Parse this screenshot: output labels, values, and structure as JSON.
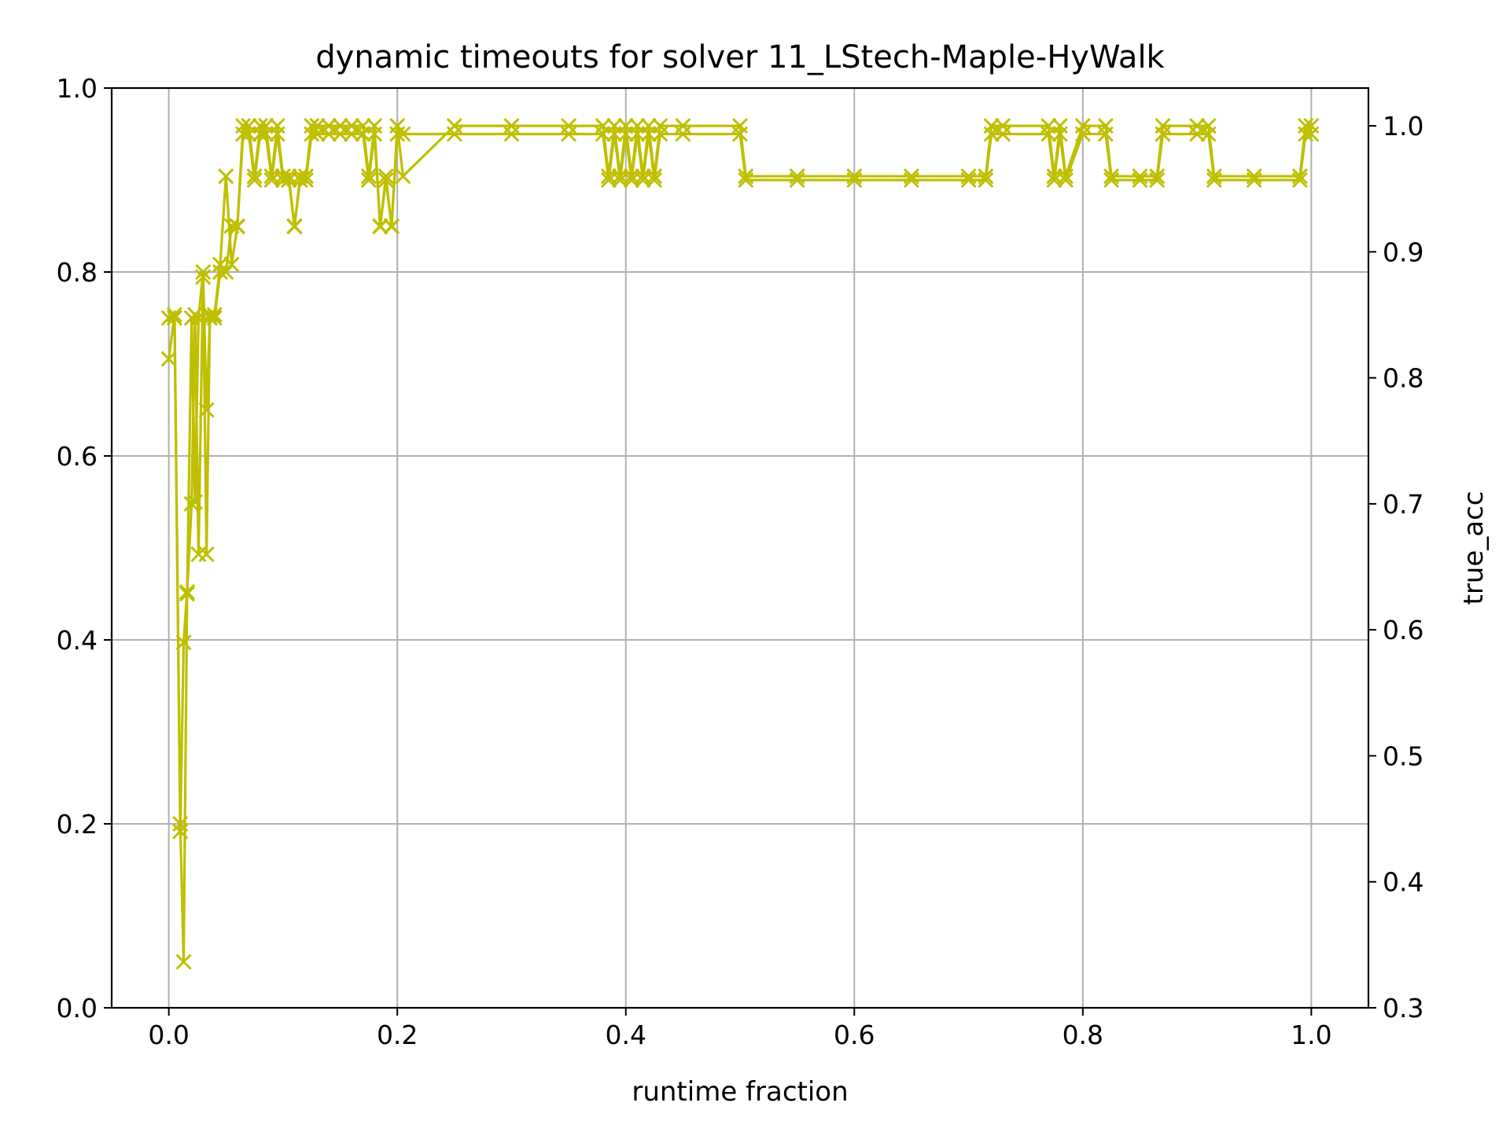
{
  "chart_data": {
    "type": "line",
    "title": "dynamic timeouts for solver 11_LStech-Maple-HyWalk",
    "xlabel": "runtime fraction",
    "ylabel": "",
    "y2label": "true_acc",
    "xlim": [
      -0.05,
      1.05
    ],
    "ylim": [
      0.0,
      1.0
    ],
    "y2lim": [
      0.3,
      1.03
    ],
    "xticks": [
      "0.0",
      "0.2",
      "0.4",
      "0.6",
      "0.8",
      "1.0"
    ],
    "yticks": [
      "0.0",
      "0.2",
      "0.4",
      "0.6",
      "0.8",
      "1.0"
    ],
    "y2ticks": [
      "0.3",
      "0.4",
      "0.5",
      "0.6",
      "0.7",
      "0.8",
      "0.9",
      "1.0"
    ],
    "grid": true,
    "marker": "x",
    "colors": {
      "series": "#bfbf00",
      "y2label": "#ff0000",
      "grid": "#b0b0b0",
      "axis": "#000000"
    },
    "series": [
      {
        "axis": "left",
        "x": [
          0.0,
          0.005,
          0.01,
          0.013,
          0.016,
          0.02,
          0.023,
          0.026,
          0.03,
          0.033,
          0.036,
          0.04,
          0.045,
          0.05,
          0.055,
          0.06,
          0.065,
          0.07,
          0.075,
          0.08,
          0.085,
          0.09,
          0.095,
          0.1,
          0.105,
          0.11,
          0.115,
          0.12,
          0.125,
          0.13,
          0.14,
          0.15,
          0.16,
          0.17,
          0.175,
          0.18,
          0.185,
          0.19,
          0.195,
          0.2,
          0.205,
          0.25,
          0.3,
          0.35,
          0.38,
          0.385,
          0.39,
          0.395,
          0.4,
          0.405,
          0.41,
          0.415,
          0.42,
          0.425,
          0.43,
          0.45,
          0.5,
          0.505,
          0.55,
          0.6,
          0.65,
          0.7,
          0.715,
          0.72,
          0.73,
          0.77,
          0.775,
          0.78,
          0.785,
          0.8,
          0.82,
          0.825,
          0.85,
          0.865,
          0.87,
          0.9,
          0.91,
          0.915,
          0.95,
          0.99,
          0.995,
          1.0
        ],
        "values": [
          0.75,
          0.75,
          0.2,
          0.05,
          0.45,
          0.75,
          0.55,
          0.75,
          0.8,
          0.65,
          0.75,
          0.75,
          0.8,
          0.8,
          0.85,
          0.85,
          0.95,
          0.95,
          0.9,
          0.95,
          0.95,
          0.9,
          0.95,
          0.9,
          0.9,
          0.85,
          0.9,
          0.9,
          0.95,
          0.95,
          0.95,
          0.95,
          0.95,
          0.95,
          0.9,
          0.95,
          0.85,
          0.9,
          0.85,
          0.95,
          0.95,
          0.95,
          0.95,
          0.95,
          0.95,
          0.9,
          0.95,
          0.9,
          0.95,
          0.9,
          0.95,
          0.9,
          0.95,
          0.9,
          0.95,
          0.95,
          0.95,
          0.9,
          0.9,
          0.9,
          0.9,
          0.9,
          0.9,
          0.95,
          0.95,
          0.95,
          0.9,
          0.95,
          0.9,
          0.95,
          0.95,
          0.9,
          0.9,
          0.9,
          0.95,
          0.95,
          0.95,
          0.9,
          0.9,
          0.9,
          0.95,
          0.95
        ]
      },
      {
        "axis": "right",
        "x": [
          0.0,
          0.005,
          0.01,
          0.013,
          0.016,
          0.02,
          0.023,
          0.026,
          0.03,
          0.033,
          0.036,
          0.04,
          0.045,
          0.05,
          0.055,
          0.06,
          0.065,
          0.07,
          0.075,
          0.08,
          0.085,
          0.09,
          0.095,
          0.1,
          0.105,
          0.11,
          0.115,
          0.12,
          0.125,
          0.13,
          0.14,
          0.15,
          0.16,
          0.17,
          0.175,
          0.18,
          0.185,
          0.19,
          0.195,
          0.2,
          0.205,
          0.25,
          0.3,
          0.35,
          0.38,
          0.385,
          0.39,
          0.395,
          0.4,
          0.405,
          0.41,
          0.415,
          0.42,
          0.425,
          0.43,
          0.45,
          0.5,
          0.505,
          0.55,
          0.6,
          0.65,
          0.7,
          0.715,
          0.72,
          0.73,
          0.77,
          0.775,
          0.78,
          0.785,
          0.8,
          0.82,
          0.825,
          0.85,
          0.865,
          0.87,
          0.9,
          0.91,
          0.915,
          0.95,
          0.99,
          0.995,
          1.0
        ],
        "values": [
          0.815,
          0.85,
          0.44,
          0.59,
          0.63,
          0.7,
          0.85,
          0.66,
          0.88,
          0.66,
          0.85,
          0.85,
          0.89,
          0.96,
          0.89,
          0.92,
          1.0,
          1.0,
          0.96,
          1.0,
          1.0,
          0.96,
          1.0,
          0.96,
          0.96,
          0.92,
          0.96,
          0.96,
          1.0,
          1.0,
          1.0,
          1.0,
          1.0,
          1.0,
          0.96,
          1.0,
          0.92,
          0.96,
          0.92,
          1.0,
          0.96,
          1.0,
          1.0,
          1.0,
          1.0,
          0.96,
          1.0,
          0.96,
          1.0,
          0.96,
          1.0,
          0.96,
          1.0,
          0.96,
          1.0,
          1.0,
          1.0,
          0.96,
          0.96,
          0.96,
          0.96,
          0.96,
          0.96,
          1.0,
          1.0,
          1.0,
          0.96,
          1.0,
          0.96,
          1.0,
          1.0,
          0.96,
          0.96,
          0.96,
          1.0,
          1.0,
          1.0,
          0.96,
          0.96,
          0.96,
          1.0,
          1.0
        ]
      }
    ]
  }
}
